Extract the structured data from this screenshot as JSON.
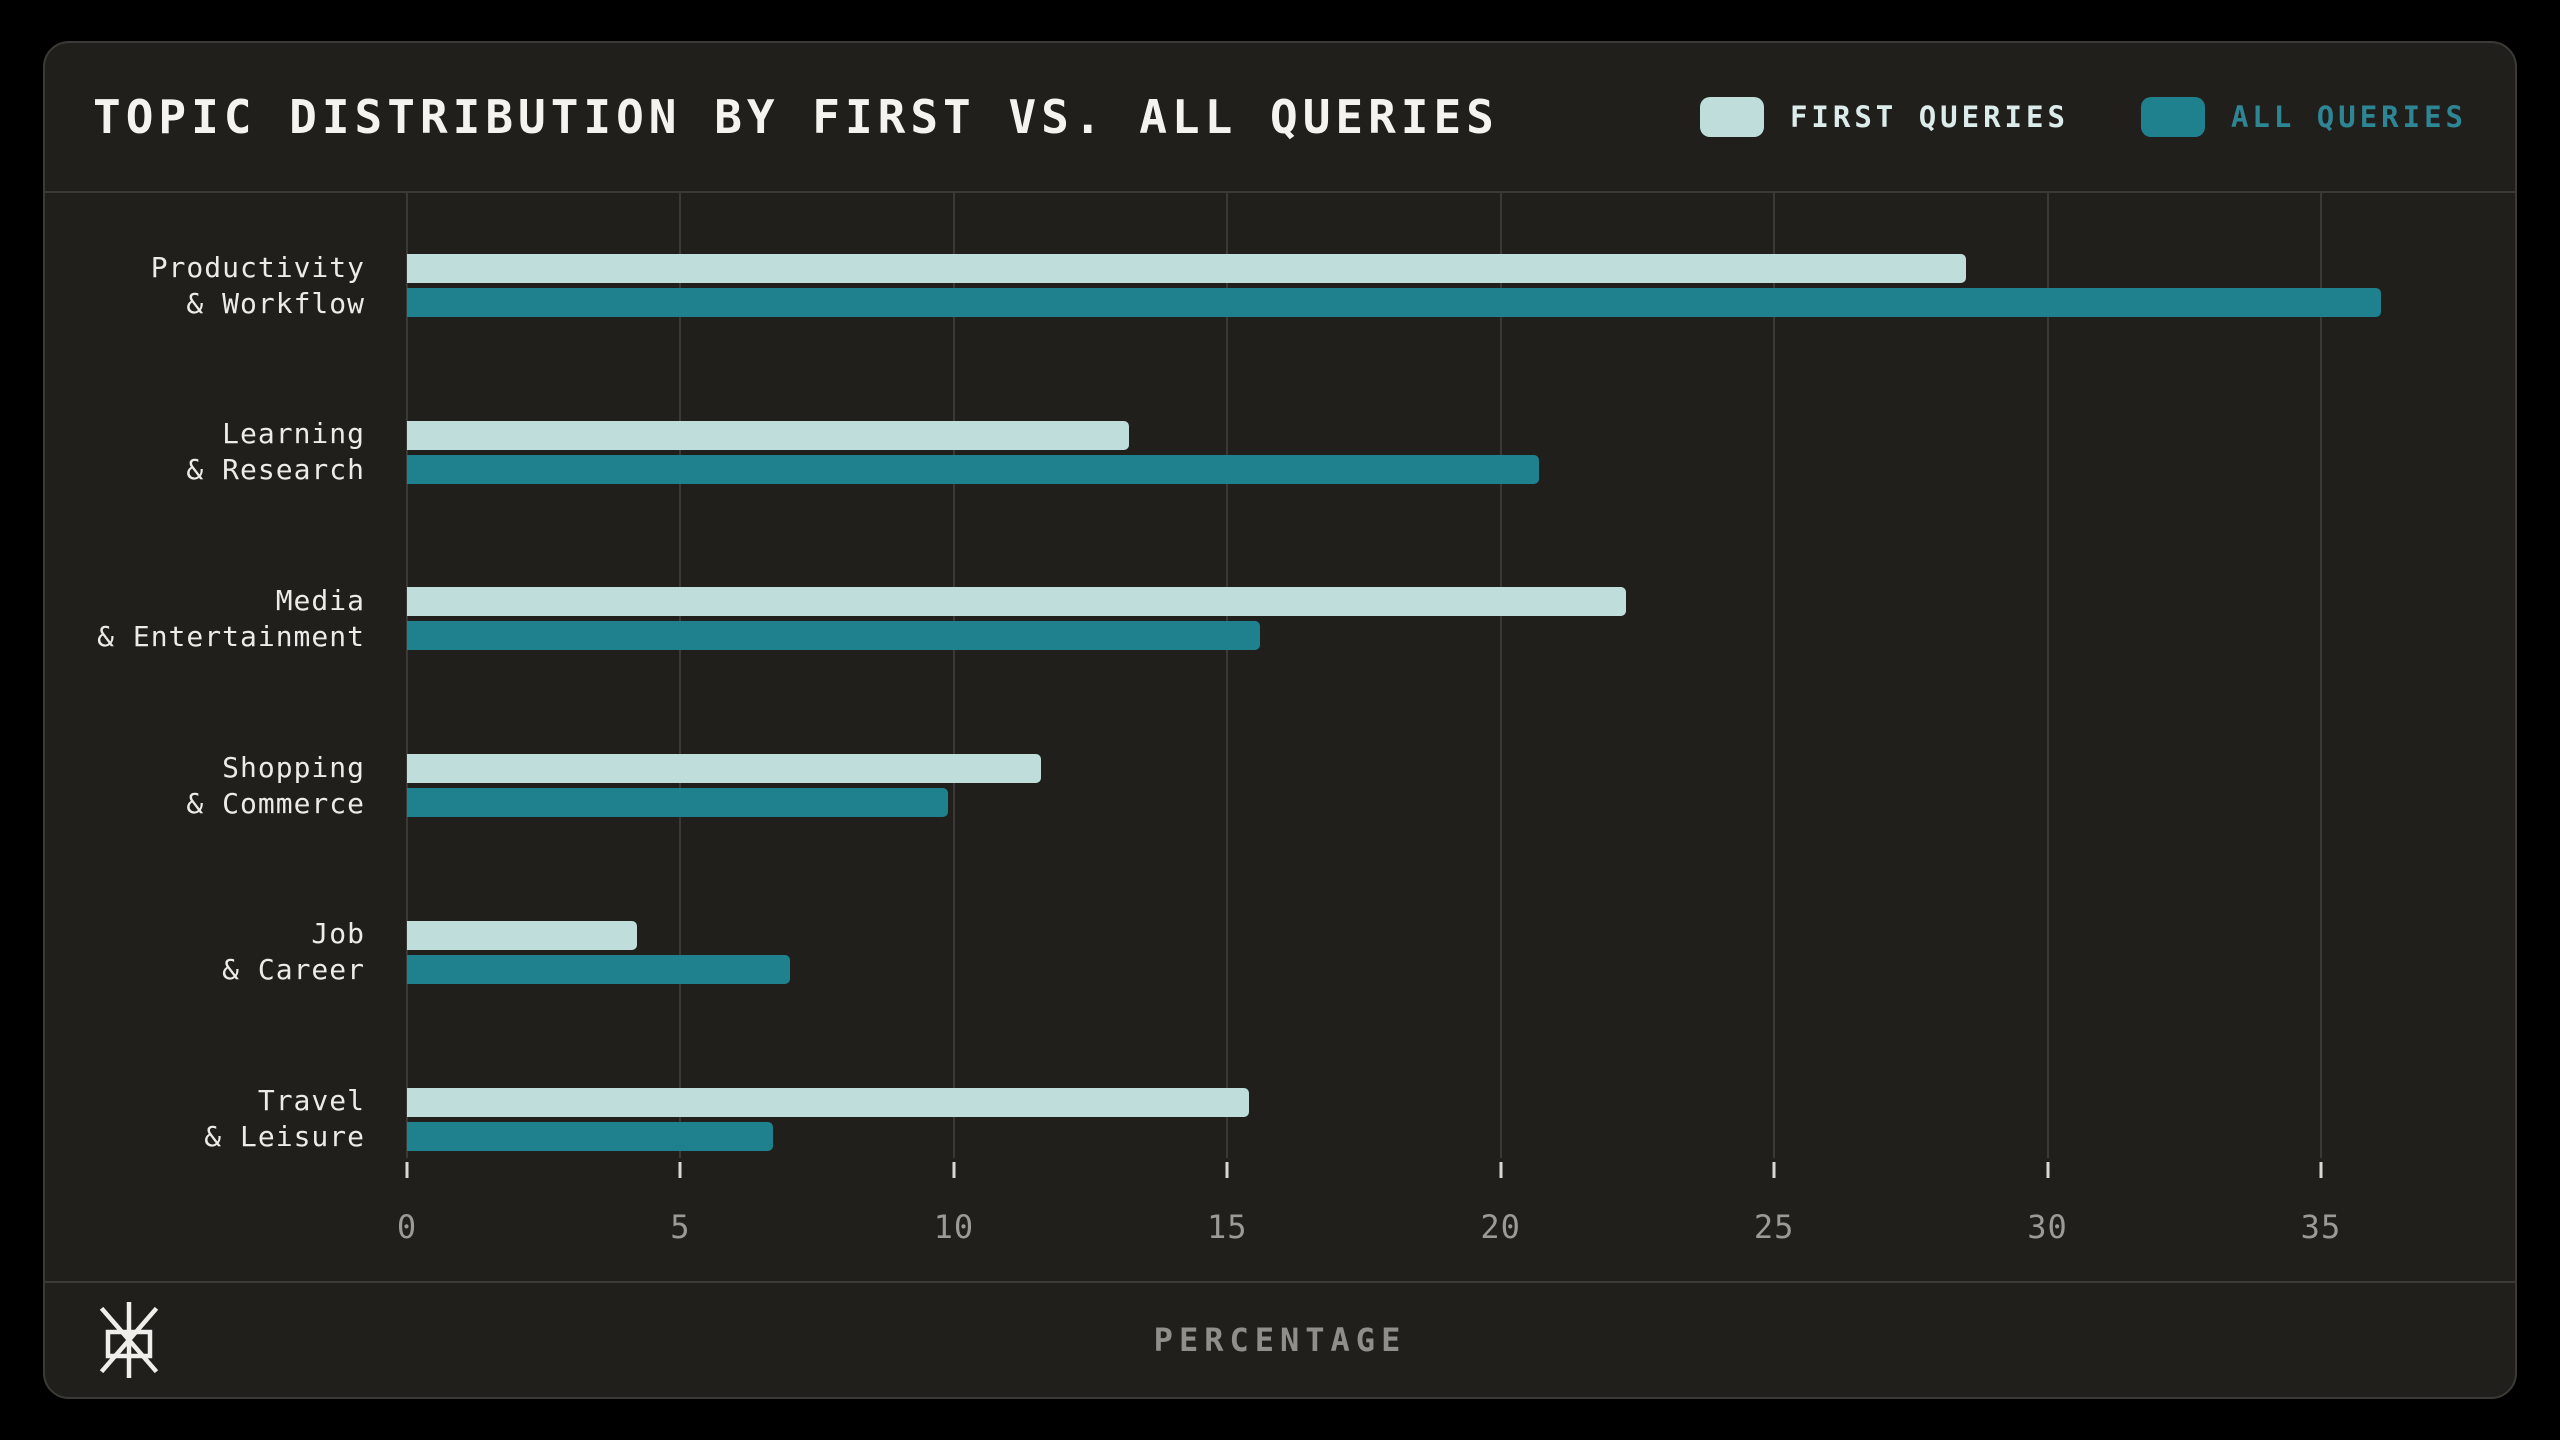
{
  "header": {
    "title": "TOPIC DISTRIBUTION BY FIRST VS. ALL QUERIES"
  },
  "legend": {
    "items": [
      {
        "label": "FIRST QUERIES",
        "swatch_color": "#bfdedb",
        "text_color": "#dcecea"
      },
      {
        "label": "ALL QUERIES",
        "swatch_color": "#1f808e",
        "text_color": "#2e8695"
      }
    ]
  },
  "footer": {
    "axis_title": "PERCENTAGE",
    "logo": "asterisk-mark"
  },
  "chart_data": {
    "type": "bar",
    "orientation": "horizontal",
    "title": "TOPIC DISTRIBUTION BY FIRST VS. ALL QUERIES",
    "categories": [
      [
        "Productivity",
        "& Workflow"
      ],
      [
        "Learning",
        "& Research"
      ],
      [
        "Media",
        "& Entertainment"
      ],
      [
        "Shopping",
        "& Commerce"
      ],
      [
        "Job",
        "& Career"
      ],
      [
        "Travel",
        "& Leisure"
      ]
    ],
    "series": [
      {
        "name": "FIRST QUERIES",
        "color": "#bfdedb",
        "values": [
          28.5,
          13.2,
          22.3,
          11.6,
          4.2,
          15.4
        ]
      },
      {
        "name": "ALL QUERIES",
        "color": "#1f808e",
        "values": [
          36.1,
          20.7,
          15.6,
          9.9,
          7.0,
          6.7
        ]
      }
    ],
    "xlabel": "PERCENTAGE",
    "xlim": [
      0,
      38
    ],
    "xticks": [
      0,
      5,
      10,
      15,
      20,
      25,
      30,
      35
    ],
    "grid": "vertical-only",
    "legend_position": "top-right",
    "colors": {
      "page_background": "#000000",
      "card_background": "#201f1c",
      "grid": "#3a3936",
      "axis_text": "#9b9a96",
      "category_text": "#edebe7",
      "title_text": "#f4f3ef"
    }
  }
}
